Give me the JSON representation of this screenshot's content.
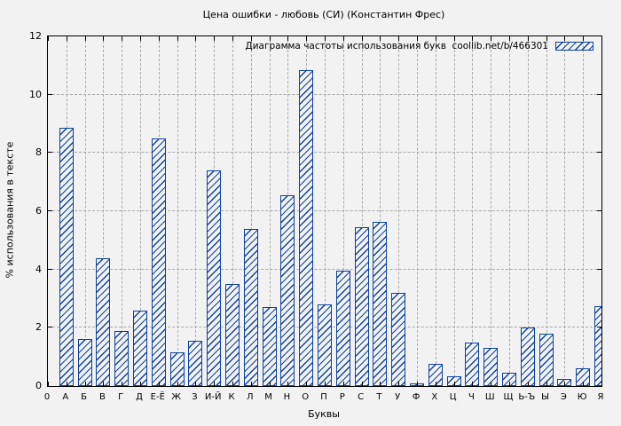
{
  "window": {
    "background_color": "#f2f2f2"
  },
  "chart_data": {
    "type": "bar",
    "title": "Цена ошибки - любовь (СИ) (Константин Фрес)",
    "legend": {
      "label": "Диаграмма частоты использования букв  coollib.net/b/466301",
      "position": "top-right-inside",
      "swatch": "blue-diagonal-hatch"
    },
    "xlabel": "Буквы",
    "ylabel": "% использования в тексте",
    "ylim": [
      0,
      12
    ],
    "yticks": [
      0,
      2,
      4,
      6,
      8,
      10,
      12
    ],
    "grid": true,
    "bar_color": "#0c41a1",
    "bar_hatch": "diagonal-down",
    "categories": [
      "0",
      "А",
      "Б",
      "В",
      "Г",
      "Д",
      "Е-Ё",
      "Ж",
      "З",
      "И-Й",
      "К",
      "Л",
      "М",
      "Н",
      "О",
      "П",
      "Р",
      "С",
      "Т",
      "У",
      "Ф",
      "Х",
      "Ц",
      "Ч",
      "Ш",
      "Щ",
      "Ь-Ъ",
      "Ы",
      "Э",
      "Ю",
      "Я"
    ],
    "values": [
      0,
      8.85,
      1.6,
      4.4,
      1.9,
      2.6,
      8.5,
      1.15,
      1.55,
      7.4,
      3.5,
      5.4,
      2.7,
      6.55,
      10.85,
      2.8,
      3.95,
      5.45,
      5.65,
      3.2,
      0.1,
      0.75,
      0.35,
      1.5,
      1.3,
      0.45,
      2.0,
      1.8,
      0.25,
      0.6,
      2.75
    ]
  }
}
